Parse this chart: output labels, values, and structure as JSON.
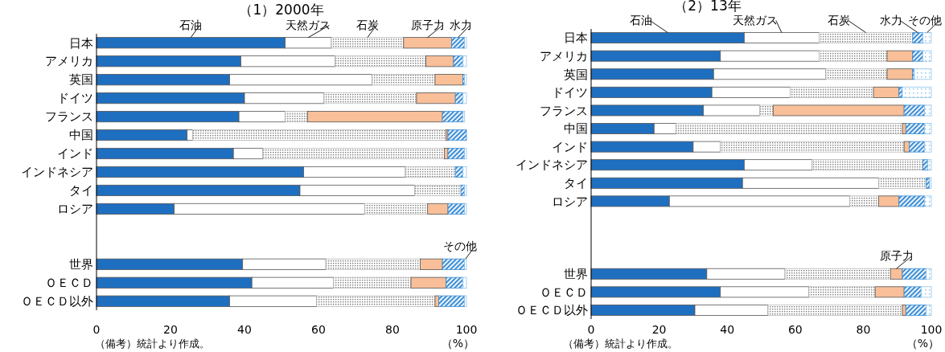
{
  "chart_data": [
    {
      "type": "bar",
      "orientation": "horizontal",
      "stacked": true,
      "title": "（1）2000年",
      "xlabel": "（%）",
      "categories": [
        "日本",
        "アメリカ",
        "英国",
        "ドイツ",
        "フランス",
        "中国",
        "インド",
        "インドネシア",
        "タイ",
        "ロシア",
        null,
        null,
        "世界",
        "ＯＥＣＤ",
        "ＯＥＣＤ以外"
      ],
      "xlim": [
        0,
        100
      ],
      "xticks": [
        0,
        20,
        40,
        60,
        80,
        100
      ],
      "grid": false,
      "annotations": [
        "（備考）統計より作成。"
      ],
      "series": [
        {
          "name": "石油",
          "color": "#1f6fc0",
          "values": [
            51,
            39,
            36,
            40,
            38.5,
            24.5,
            37,
            56,
            55,
            21,
            null,
            null,
            39.5,
            42,
            36
          ]
        },
        {
          "name": "天然ガス",
          "color": "#ffffff",
          "values": [
            12.5,
            25.5,
            38.5,
            21.5,
            12.5,
            1.5,
            8,
            27.5,
            31,
            51.5,
            null,
            null,
            22.5,
            22,
            23.5
          ]
        },
        {
          "name": "石炭",
          "color": "#bdbdbd",
          "values": [
            19.5,
            24.5,
            17,
            25,
            6,
            68.5,
            49,
            13.5,
            12.5,
            17,
            null,
            null,
            25.5,
            21,
            32
          ]
        },
        {
          "name": "原子力",
          "color": "#f8bf98",
          "values": [
            13,
            7.5,
            7.5,
            10.5,
            36.5,
            0.5,
            1,
            0,
            0,
            5.5,
            null,
            null,
            6,
            9.5,
            1
          ]
        },
        {
          "name": "水力",
          "color": "#3d8ed6",
          "values": [
            3.5,
            2.5,
            0.5,
            2,
            5.5,
            5,
            4.5,
            2,
            1,
            4.5,
            null,
            null,
            6,
            4.5,
            7
          ]
        },
        {
          "name": "その他",
          "color": "#8fc3ea",
          "values": [
            0.5,
            1,
            0.5,
            1,
            0.5,
            0,
            0.5,
            1,
            0.5,
            0.5,
            null,
            null,
            0.5,
            1,
            0.5
          ]
        }
      ]
    },
    {
      "type": "bar",
      "orientation": "horizontal",
      "stacked": true,
      "title": "（2）13年",
      "xlabel": "（%）",
      "categories": [
        "日本",
        "アメリカ",
        "英国",
        "ドイツ",
        "フランス",
        "中国",
        "インド",
        "インドネシア",
        "タイ",
        "ロシア",
        null,
        null,
        null,
        "世界",
        "ＯＥＣＤ",
        "ＯＥＣＤ以外"
      ],
      "xlim": [
        0,
        100
      ],
      "xticks": [
        0,
        20,
        40,
        60,
        80,
        100
      ],
      "grid": false,
      "annotations": [
        "（備考）統計より作成。"
      ],
      "series": [
        {
          "name": "石油",
          "color": "#1f6fc0",
          "values": [
            45,
            38,
            36,
            35.5,
            33,
            18.5,
            30,
            45,
            44.5,
            23,
            null,
            null,
            null,
            34,
            38,
            30.5
          ]
        },
        {
          "name": "天然ガス",
          "color": "#ffffff",
          "values": [
            22,
            29,
            33,
            23,
            16.5,
            6.5,
            8,
            20,
            40,
            53,
            null,
            null,
            null,
            23,
            26,
            21.5
          ]
        },
        {
          "name": "石炭",
          "color": "#bdbdbd",
          "values": [
            27.5,
            20,
            18,
            24.5,
            4,
            66.5,
            54,
            32.5,
            14,
            8.5,
            null,
            null,
            null,
            31,
            19.5,
            39.5
          ]
        },
        {
          "name": "原子力",
          "color": "#f8bf98",
          "values": [
            0,
            7.5,
            7.5,
            7.5,
            38.5,
            1,
            1.5,
            0,
            0,
            6,
            null,
            null,
            null,
            3.5,
            8.5,
            1
          ]
        },
        {
          "name": "水力",
          "color": "#3d8ed6",
          "values": [
            3,
            3,
            0.5,
            1,
            6,
            5.5,
            4.5,
            1.5,
            1,
            7.5,
            null,
            null,
            null,
            7,
            5,
            6
          ]
        },
        {
          "name": "その他",
          "color": "#8fc3ea",
          "values": [
            2.5,
            2.5,
            5,
            8.5,
            2,
            2,
            2,
            1,
            0.5,
            2,
            null,
            null,
            null,
            1.5,
            3,
            1.5
          ]
        }
      ]
    }
  ]
}
